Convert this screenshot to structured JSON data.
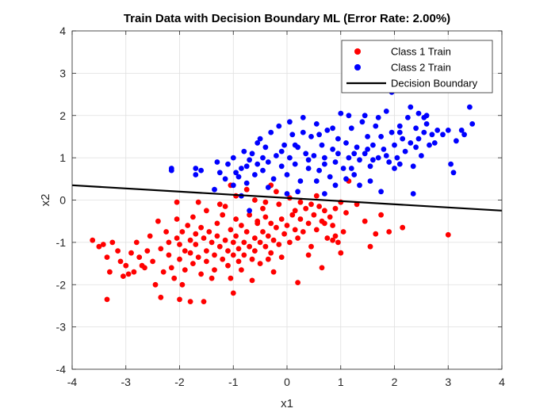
{
  "chart_data": {
    "type": "scatter",
    "title": "Train Data with Decision Boundary ML (Error Rate: 2.00%)",
    "xlabel": "x1",
    "ylabel": "x2",
    "xlim": [
      -4,
      4
    ],
    "ylim": [
      -4,
      4
    ],
    "xticks": [
      -4,
      -3,
      -2,
      -1,
      0,
      1,
      2,
      3,
      4
    ],
    "yticks": [
      -4,
      -3,
      -2,
      -1,
      0,
      1,
      2,
      3,
      4
    ],
    "grid": true,
    "legend_position": "top-right",
    "series": [
      {
        "name": "Class 1 Train",
        "color": "#ff0000",
        "marker": "dot",
        "points": [
          [
            -3.62,
            -0.95
          ],
          [
            -3.5,
            -1.1
          ],
          [
            -3.42,
            -1.05
          ],
          [
            -3.35,
            -1.35
          ],
          [
            -3.3,
            -1.7
          ],
          [
            -3.35,
            -2.35
          ],
          [
            -3.25,
            -1.0
          ],
          [
            -3.15,
            -1.2
          ],
          [
            -3.1,
            -1.45
          ],
          [
            -3.0,
            -1.55
          ],
          [
            -2.95,
            -1.75
          ],
          [
            -2.9,
            -1.25
          ],
          [
            -2.85,
            -1.7
          ],
          [
            -2.75,
            -1.35
          ],
          [
            -2.7,
            -1.55
          ],
          [
            -2.6,
            -1.2
          ],
          [
            -2.5,
            -1.45
          ],
          [
            -2.45,
            -2.0
          ],
          [
            -2.4,
            -0.5
          ],
          [
            -2.35,
            -1.15
          ],
          [
            -2.3,
            -1.7
          ],
          [
            -2.25,
            -0.75
          ],
          [
            -2.2,
            -1.0
          ],
          [
            -2.2,
            -1.3
          ],
          [
            -2.15,
            -1.6
          ],
          [
            -2.1,
            -1.85
          ],
          [
            -2.05,
            -0.9
          ],
          [
            -2.05,
            -0.45
          ],
          [
            -2.0,
            -1.05
          ],
          [
            -2.0,
            -1.4
          ],
          [
            -1.95,
            -0.75
          ],
          [
            -1.9,
            -1.2
          ],
          [
            -1.9,
            -1.65
          ],
          [
            -1.85,
            -0.6
          ],
          [
            -1.8,
            -0.95
          ],
          [
            -1.8,
            -1.25
          ],
          [
            -1.75,
            -1.5
          ],
          [
            -1.7,
            -0.8
          ],
          [
            -1.7,
            -1.05
          ],
          [
            -1.65,
            -1.35
          ],
          [
            -1.6,
            -0.65
          ],
          [
            -1.6,
            -1.75
          ],
          [
            -1.55,
            -0.9
          ],
          [
            -1.5,
            -1.2
          ],
          [
            -1.5,
            -1.45
          ],
          [
            -1.45,
            -0.75
          ],
          [
            -1.4,
            -1.0
          ],
          [
            -1.35,
            -1.3
          ],
          [
            -1.35,
            -1.65
          ],
          [
            -1.3,
            -0.55
          ],
          [
            -1.3,
            -0.85
          ],
          [
            -1.25,
            -1.1
          ],
          [
            -1.2,
            -1.4
          ],
          [
            -1.2,
            -0.35
          ],
          [
            -1.15,
            -0.95
          ],
          [
            -1.1,
            -1.2
          ],
          [
            -1.1,
            -1.55
          ],
          [
            -1.05,
            -0.7
          ],
          [
            -1.0,
            -1.0
          ],
          [
            -1.0,
            -1.3
          ],
          [
            -0.95,
            -0.45
          ],
          [
            -0.95,
            -0.85
          ],
          [
            -0.9,
            -1.15
          ],
          [
            -0.9,
            -1.45
          ],
          [
            -0.85,
            -0.6
          ],
          [
            -0.8,
            -1.0
          ],
          [
            -0.8,
            -1.3
          ],
          [
            -0.75,
            -0.75
          ],
          [
            -0.7,
            -1.1
          ],
          [
            -0.7,
            -0.35
          ],
          [
            -0.65,
            -1.4
          ],
          [
            -0.6,
            -0.9
          ],
          [
            -0.6,
            -1.2
          ],
          [
            -0.55,
            -0.55
          ],
          [
            -0.5,
            -1.0
          ],
          [
            -0.5,
            -1.5
          ],
          [
            -0.45,
            -0.75
          ],
          [
            -0.4,
            -1.1
          ],
          [
            -0.4,
            -0.4
          ],
          [
            -0.35,
            -0.85
          ],
          [
            -0.3,
            -1.25
          ],
          [
            -0.3,
            -0.55
          ],
          [
            -0.25,
            -0.95
          ],
          [
            -0.2,
            -0.65
          ],
          [
            -0.15,
            -1.05
          ],
          [
            -0.1,
            -0.45
          ],
          [
            -0.05,
            -0.8
          ],
          [
            0.0,
            -0.6
          ],
          [
            0.05,
            -1.0
          ],
          [
            0.1,
            -0.35
          ],
          [
            0.15,
            -0.7
          ],
          [
            0.2,
            -0.9
          ],
          [
            0.25,
            -0.45
          ],
          [
            0.3,
            -0.75
          ],
          [
            0.35,
            -0.2
          ],
          [
            0.4,
            -0.55
          ],
          [
            0.45,
            -1.1
          ],
          [
            0.5,
            -0.35
          ],
          [
            0.55,
            -0.7
          ],
          [
            0.6,
            -0.15
          ],
          [
            0.65,
            -0.5
          ],
          [
            0.7,
            -0.25
          ],
          [
            0.75,
            -0.9
          ],
          [
            0.8,
            -0.4
          ],
          [
            0.85,
            -0.6
          ],
          [
            0.9,
            -0.2
          ],
          [
            0.95,
            -1.0
          ],
          [
            1.0,
            -1.25
          ],
          [
            1.05,
            -0.75
          ],
          [
            1.1,
            -0.3
          ],
          [
            1.15,
            0.45
          ],
          [
            1.3,
            -0.1
          ],
          [
            1.45,
            -0.5
          ],
          [
            1.55,
            -1.1
          ],
          [
            1.65,
            -0.8
          ],
          [
            1.75,
            -0.35
          ],
          [
            1.9,
            -0.75
          ],
          [
            2.15,
            -0.65
          ],
          [
            3.0,
            -0.82
          ],
          [
            -2.35,
            -2.3
          ],
          [
            -2.0,
            -2.35
          ],
          [
            -1.8,
            -2.4
          ],
          [
            -1.55,
            -2.4
          ],
          [
            -1.0,
            -2.2
          ],
          [
            -0.65,
            -1.9
          ],
          [
            0.2,
            -1.95
          ],
          [
            0.65,
            -1.6
          ],
          [
            -1.95,
            -2.0
          ],
          [
            -1.4,
            -1.85
          ],
          [
            -0.25,
            -1.7
          ],
          [
            -0.55,
            -0.5
          ],
          [
            -1.05,
            0.35
          ],
          [
            -0.95,
            0.1
          ],
          [
            -0.75,
            0.25
          ],
          [
            -0.6,
            0.0
          ],
          [
            -0.4,
            -0.05
          ],
          [
            -0.3,
            0.35
          ],
          [
            -0.2,
            0.2
          ],
          [
            0.05,
            0.05
          ],
          [
            0.25,
            -0.05
          ],
          [
            -2.05,
            -0.05
          ],
          [
            -1.65,
            -0.05
          ],
          [
            -1.25,
            -0.1
          ],
          [
            -0.15,
            -0.1
          ],
          [
            0.45,
            -0.1
          ],
          [
            0.7,
            -0.55
          ],
          [
            0.9,
            -0.85
          ],
          [
            -1.5,
            -0.25
          ],
          [
            -0.1,
            -1.35
          ],
          [
            -0.85,
            -1.65
          ],
          [
            -1.75,
            -0.4
          ],
          [
            -2.55,
            -0.85
          ],
          [
            -2.8,
            -1.0
          ],
          [
            -1.15,
            -0.15
          ],
          [
            -0.45,
            -0.2
          ],
          [
            0.15,
            -0.25
          ],
          [
            0.55,
            0.1
          ],
          [
            1.0,
            -0.05
          ],
          [
            -3.05,
            -1.8
          ],
          [
            -2.65,
            -1.6
          ],
          [
            -1.05,
            -1.85
          ],
          [
            -0.35,
            -1.4
          ],
          [
            0.4,
            -1.3
          ],
          [
            0.85,
            -0.95
          ]
        ]
      },
      {
        "name": "Class 2 Train",
        "color": "#0000ff",
        "marker": "dot",
        "points": [
          [
            -2.15,
            0.75
          ],
          [
            -2.15,
            0.7
          ],
          [
            -1.7,
            0.75
          ],
          [
            -1.7,
            0.6
          ],
          [
            -1.6,
            0.7
          ],
          [
            -1.35,
            0.25
          ],
          [
            -1.25,
            0.65
          ],
          [
            -1.15,
            0.5
          ],
          [
            -1.1,
            0.85
          ],
          [
            -1.0,
            1.0
          ],
          [
            -1.0,
            0.35
          ],
          [
            -0.9,
            0.55
          ],
          [
            -0.85,
            0.75
          ],
          [
            -0.8,
            1.15
          ],
          [
            -0.75,
            0.4
          ],
          [
            -0.7,
            0.95
          ],
          [
            -0.65,
            1.1
          ],
          [
            -0.6,
            0.6
          ],
          [
            -0.55,
            0.85
          ],
          [
            -0.5,
            1.45
          ],
          [
            -0.45,
            0.7
          ],
          [
            -0.4,
            1.25
          ],
          [
            -0.35,
            0.9
          ],
          [
            -0.3,
            1.6
          ],
          [
            -0.25,
            0.5
          ],
          [
            -0.2,
            1.05
          ],
          [
            -0.15,
            1.75
          ],
          [
            -0.1,
            0.8
          ],
          [
            -0.05,
            1.3
          ],
          [
            0.0,
            0.6
          ],
          [
            0.05,
            1.0
          ],
          [
            0.1,
            1.55
          ],
          [
            0.15,
            0.85
          ],
          [
            0.2,
            1.25
          ],
          [
            0.25,
            0.45
          ],
          [
            0.3,
            1.95
          ],
          [
            0.35,
            1.1
          ],
          [
            0.4,
            0.75
          ],
          [
            0.45,
            1.5
          ],
          [
            0.5,
            1.05
          ],
          [
            0.55,
            1.8
          ],
          [
            0.6,
            0.7
          ],
          [
            0.65,
            1.3
          ],
          [
            0.7,
            1.0
          ],
          [
            0.75,
            1.65
          ],
          [
            0.8,
            0.55
          ],
          [
            0.85,
            1.2
          ],
          [
            0.9,
            0.9
          ],
          [
            0.95,
            1.45
          ],
          [
            1.0,
            2.05
          ],
          [
            1.05,
            0.75
          ],
          [
            1.1,
            1.35
          ],
          [
            1.15,
            1.0
          ],
          [
            1.2,
            1.7
          ],
          [
            1.25,
            0.6
          ],
          [
            1.3,
            1.25
          ],
          [
            1.35,
            0.95
          ],
          [
            1.4,
            1.85
          ],
          [
            1.45,
            1.1
          ],
          [
            1.5,
            1.5
          ],
          [
            1.55,
            0.8
          ],
          [
            1.6,
            1.3
          ],
          [
            1.65,
            1.75
          ],
          [
            1.7,
            1.0
          ],
          [
            1.75,
            1.5
          ],
          [
            1.8,
            1.2
          ],
          [
            1.85,
            2.1
          ],
          [
            1.9,
            0.9
          ],
          [
            1.95,
            1.6
          ],
          [
            2.0,
            1.3
          ],
          [
            2.05,
            1.0
          ],
          [
            2.1,
            1.75
          ],
          [
            2.15,
            1.45
          ],
          [
            2.2,
            1.15
          ],
          [
            2.25,
            1.95
          ],
          [
            2.3,
            1.35
          ],
          [
            2.35,
            0.8
          ],
          [
            2.4,
            1.7
          ],
          [
            2.45,
            1.45
          ],
          [
            2.5,
            1.05
          ],
          [
            2.55,
            1.6
          ],
          [
            2.6,
            2.0
          ],
          [
            2.65,
            1.3
          ],
          [
            2.7,
            1.55
          ],
          [
            2.8,
            1.65
          ],
          [
            2.9,
            1.55
          ],
          [
            3.0,
            1.65
          ],
          [
            3.05,
            0.85
          ],
          [
            3.1,
            0.65
          ],
          [
            3.15,
            1.4
          ],
          [
            3.25,
            1.65
          ],
          [
            3.3,
            1.55
          ],
          [
            3.4,
            2.2
          ],
          [
            3.45,
            1.8
          ],
          [
            1.95,
            2.55
          ],
          [
            2.3,
            2.2
          ],
          [
            2.45,
            2.05
          ],
          [
            2.55,
            1.95
          ],
          [
            2.35,
            0.15
          ],
          [
            1.75,
            0.2
          ],
          [
            1.55,
            0.45
          ],
          [
            1.1,
            0.5
          ],
          [
            0.7,
            0.15
          ],
          [
            0.2,
            0.2
          ],
          [
            -0.35,
            0.3
          ],
          [
            -0.7,
            -0.25
          ],
          [
            0.0,
            0.15
          ],
          [
            -0.85,
            0.1
          ],
          [
            0.55,
            0.45
          ],
          [
            1.35,
            0.35
          ],
          [
            -1.3,
            0.9
          ],
          [
            -0.95,
            0.65
          ],
          [
            -0.55,
            1.35
          ],
          [
            0.05,
            1.85
          ],
          [
            0.3,
            1.6
          ],
          [
            0.6,
            1.55
          ],
          [
            0.85,
            1.7
          ],
          [
            1.15,
            2.0
          ],
          [
            1.45,
            2.0
          ],
          [
            1.7,
            1.95
          ],
          [
            2.1,
            1.6
          ],
          [
            2.6,
            1.8
          ],
          [
            0.4,
            0.95
          ],
          [
            0.7,
            0.85
          ],
          [
            0.95,
            1.1
          ],
          [
            1.25,
            1.1
          ],
          [
            1.5,
            1.2
          ],
          [
            1.85,
            1.05
          ],
          [
            2.1,
            0.85
          ],
          [
            2.4,
            1.25
          ],
          [
            2.75,
            1.35
          ],
          [
            0.15,
            1.3
          ],
          [
            -0.1,
            1.15
          ],
          [
            -0.45,
            1.0
          ],
          [
            -0.75,
            0.8
          ],
          [
            0.9,
            0.35
          ],
          [
            1.2,
            0.75
          ],
          [
            1.6,
            0.95
          ],
          [
            2.0,
            0.75
          ]
        ]
      }
    ],
    "lines": [
      {
        "name": "Decision Boundary",
        "color": "#000000",
        "x": [
          -4,
          4
        ],
        "y": [
          0.35,
          -0.25
        ]
      }
    ]
  }
}
